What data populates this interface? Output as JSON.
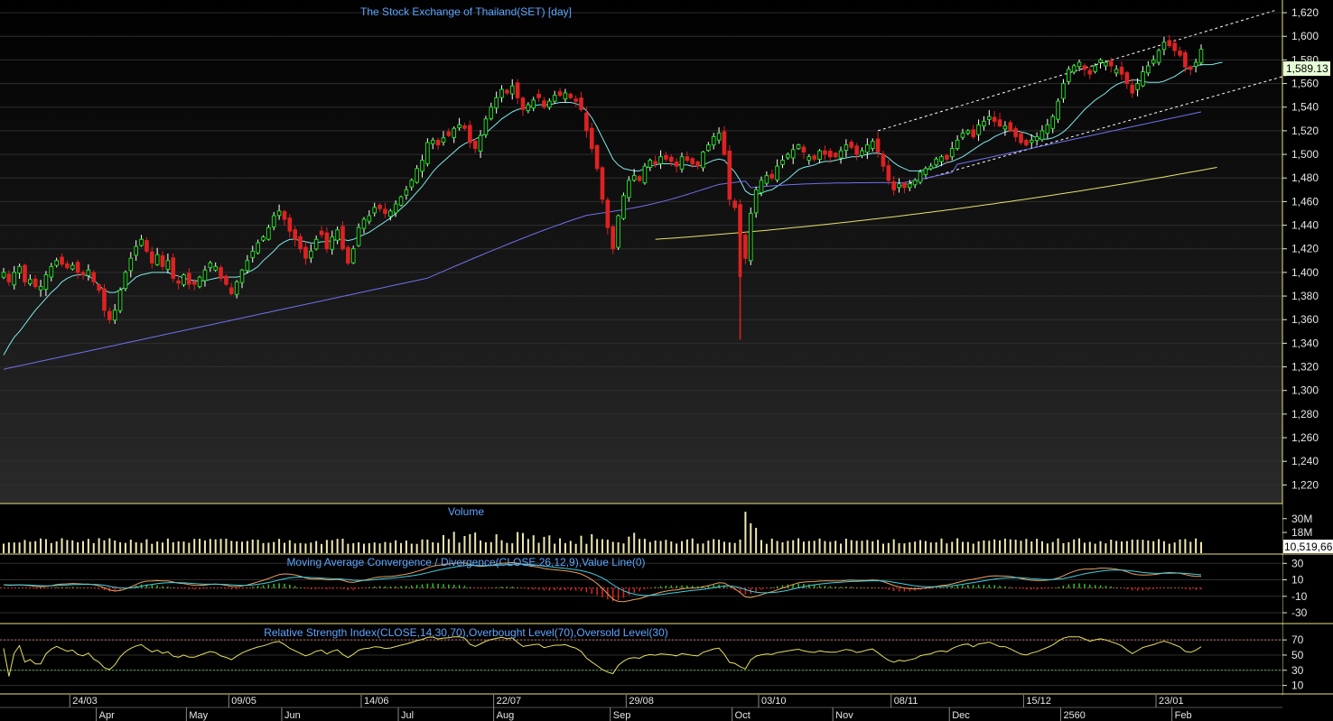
{
  "chart_data": {
    "type": "candlestick",
    "title": "The Stock Exchange of Thailand(SET) [day]",
    "last_price_label": "1,589.13",
    "last_volume_label": "10,519,66",
    "colors": {
      "background": "#000000",
      "panel_border": "#e8e07a",
      "grid": "#2e2e2e",
      "up_candle": "#22dd22",
      "down_candle": "#dd2222",
      "ma_short": "#7fe8e8",
      "ma_mid": "#7070ee",
      "ma_long": "#e8e070",
      "volume": "#efe9b0",
      "macd": "#e8a060",
      "signal": "#40d0e0",
      "rsi": "#e8e060",
      "rsi_overbought": "#cc6666",
      "rsi_oversold": "#55aa55",
      "title": "#5da5ff",
      "last_price_box": "#e6ffd8"
    },
    "price_axis": {
      "ylim": [
        1205,
        1630
      ],
      "ticks": [
        1220,
        1240,
        1260,
        1280,
        1300,
        1320,
        1340,
        1360,
        1380,
        1400,
        1420,
        1440,
        1460,
        1480,
        1500,
        1520,
        1540,
        1560,
        1580,
        1600,
        1620
      ],
      "tick_labels": [
        "1,220",
        "1,240",
        "1,260",
        "1,280",
        "1,300",
        "1,320",
        "1,340",
        "1,360",
        "1,380",
        "1,400",
        "1,420",
        "1,440",
        "1,460",
        "1,480",
        "1,500",
        "1,520",
        "1,540",
        "1,560",
        "1,580",
        "1,600",
        "1,620"
      ]
    },
    "x_axis": {
      "major_labels": [
        {
          "label": "24/03",
          "index": 13
        },
        {
          "label": "09/05",
          "index": 43
        },
        {
          "label": "14/06",
          "index": 68
        },
        {
          "label": "22/07",
          "index": 93
        },
        {
          "label": "29/08",
          "index": 118
        },
        {
          "label": "03/10",
          "index": 143
        },
        {
          "label": "08/11",
          "index": 168
        },
        {
          "label": "15/12",
          "index": 193
        },
        {
          "label": "23/01",
          "index": 218
        }
      ],
      "month_labels": [
        {
          "label": "Apr",
          "index": 18
        },
        {
          "label": "May",
          "index": 35
        },
        {
          "label": "Jun",
          "index": 53
        },
        {
          "label": "Jul",
          "index": 75
        },
        {
          "label": "Aug",
          "index": 93
        },
        {
          "label": "Sep",
          "index": 115
        },
        {
          "label": "Oct",
          "index": 138
        },
        {
          "label": "Nov",
          "index": 157
        },
        {
          "label": "Dec",
          "index": 179
        },
        {
          "label": "2560",
          "index": 200
        },
        {
          "label": "Feb",
          "index": 221
        }
      ]
    },
    "close": [
      1400,
      1392,
      1400,
      1405,
      1392,
      1394,
      1388,
      1388,
      1398,
      1405,
      1410,
      1407,
      1404,
      1406,
      1400,
      1398,
      1402,
      1392,
      1385,
      1368,
      1360,
      1368,
      1385,
      1400,
      1412,
      1422,
      1428,
      1418,
      1408,
      1415,
      1405,
      1410,
      1395,
      1391,
      1398,
      1390,
      1390,
      1396,
      1402,
      1408,
      1405,
      1395,
      1390,
      1382,
      1392,
      1402,
      1410,
      1418,
      1425,
      1430,
      1438,
      1448,
      1452,
      1445,
      1435,
      1428,
      1420,
      1412,
      1418,
      1428,
      1432,
      1420,
      1430,
      1436,
      1420,
      1408,
      1420,
      1438,
      1445,
      1448,
      1455,
      1454,
      1450,
      1452,
      1458,
      1464,
      1470,
      1478,
      1488,
      1495,
      1510,
      1512,
      1508,
      1514,
      1516,
      1522,
      1525,
      1522,
      1510,
      1505,
      1516,
      1530,
      1540,
      1548,
      1555,
      1552,
      1558,
      1548,
      1538,
      1542,
      1546,
      1548,
      1540,
      1545,
      1550,
      1550,
      1552,
      1548,
      1545,
      1538,
      1520,
      1505,
      1488,
      1462,
      1438,
      1420,
      1448,
      1465,
      1478,
      1482,
      1478,
      1490,
      1495,
      1492,
      1498,
      1496,
      1494,
      1490,
      1498,
      1495,
      1492,
      1490,
      1502,
      1508,
      1515,
      1518,
      1500,
      1462,
      1455,
      1432,
      1412,
      1450,
      1470,
      1478,
      1482,
      1480,
      1490,
      1495,
      1500,
      1504,
      1508,
      1502,
      1498,
      1496,
      1503,
      1500,
      1498,
      1498,
      1503,
      1508,
      1506,
      1500,
      1503,
      1508,
      1511,
      1502,
      1490,
      1478,
      1470,
      1475,
      1472,
      1475,
      1478,
      1485,
      1488,
      1490,
      1496,
      1498,
      1496,
      1505,
      1512,
      1518,
      1520,
      1515,
      1525,
      1528,
      1532,
      1528,
      1524,
      1524,
      1520,
      1515,
      1510,
      1508,
      1512,
      1515,
      1520,
      1525,
      1532,
      1545,
      1560,
      1572,
      1575,
      1578,
      1572,
      1568,
      1575,
      1580,
      1578,
      1575,
      1572,
      1568,
      1560,
      1552,
      1560,
      1570,
      1575,
      1580,
      1588,
      1595,
      1592,
      1588,
      1584,
      1574,
      1572,
      1578,
      1589
    ],
    "candles_note": "daily OHLC approximated from chart",
    "ma_short_sample": [
      1330,
      1338,
      1345,
      1350,
      1356,
      1362,
      1368,
      1373,
      1378,
      1383,
      1387,
      1392,
      1395,
      1397,
      1398,
      1398,
      1397,
      1394,
      1389,
      1385,
      1383,
      1383,
      1385,
      1388,
      1392,
      1396,
      1398,
      1399,
      1400,
      1400,
      1400,
      1400,
      1398,
      1397,
      1395,
      1394,
      1393,
      1393,
      1393,
      1394,
      1395,
      1396,
      1396,
      1396,
      1396,
      1397,
      1400,
      1402,
      1405,
      1410,
      1414,
      1418,
      1423,
      1426,
      1428,
      1428,
      1427,
      1426,
      1425,
      1425,
      1426,
      1426,
      1427,
      1428,
      1428,
      1427,
      1428,
      1430,
      1432,
      1434,
      1437,
      1440,
      1443,
      1446,
      1450,
      1454,
      1458,
      1463,
      1468,
      1473,
      1479,
      1485,
      1490,
      1494,
      1498,
      1502,
      1506,
      1509,
      1511,
      1513,
      1515,
      1518,
      1522,
      1526,
      1530,
      1533,
      1536,
      1538,
      1539,
      1540,
      1541,
      1542,
      1542,
      1542,
      1543,
      1544,
      1544,
      1544,
      1543,
      1541,
      1537,
      1531,
      1523,
      1514,
      1505,
      1496,
      1491,
      1488,
      1487,
      1486,
      1486,
      1488,
      1490,
      1491,
      1492,
      1492,
      1492,
      1491,
      1491,
      1491,
      1490,
      1490,
      1491,
      1493,
      1495,
      1496,
      1495,
      1490,
      1485,
      1478,
      1469,
      1466,
      1466,
      1467,
      1469,
      1470,
      1473,
      1476,
      1479,
      1483,
      1487,
      1489,
      1490,
      1491,
      1493,
      1494,
      1494,
      1495,
      1496,
      1497,
      1498,
      1498,
      1499,
      1500,
      1501,
      1501,
      1500,
      1497,
      1493,
      1490,
      1488,
      1486,
      1486,
      1486,
      1487,
      1488,
      1489,
      1491,
      1493,
      1494,
      1496,
      1498,
      1501,
      1504,
      1507,
      1510,
      1512,
      1515,
      1517,
      1519,
      1520,
      1520,
      1519,
      1518,
      1516,
      1514,
      1513,
      1513,
      1514,
      1516,
      1519,
      1523,
      1528,
      1533,
      1538,
      1542,
      1546,
      1549,
      1552,
      1556,
      1559,
      1561,
      1562,
      1563,
      1563,
      1562,
      1561,
      1561,
      1561,
      1562,
      1564,
      1566,
      1569,
      1572,
      1574,
      1575,
      1576,
      1576,
      1576,
      1577,
      1578
    ],
    "ma_mid_start": [
      0,
      1318
    ],
    "ma_mid_end": [
      229,
      1536
    ],
    "ma_long_start": [
      123,
      1428
    ],
    "ma_long_end": [
      229,
      1489
    ],
    "channel_upper": [
      [
        165,
        1520
      ],
      [
        240,
        1622
      ]
    ],
    "channel_lower": [
      [
        169,
        1473
      ],
      [
        243,
        1568
      ]
    ],
    "volume_axis": {
      "ticks": [
        "30M",
        "18M"
      ],
      "values": [
        30,
        18
      ],
      "ylim": [
        0,
        40
      ]
    },
    "volume_panel_title": "Volume",
    "macd_panel_title": "Moving Average Convergence / Divergence(CLOSE,26,12,9),Value Line(0)",
    "macd_axis": {
      "ticks": [
        30,
        10,
        -10,
        -30
      ],
      "ylim": [
        -42,
        38
      ]
    },
    "rsi_panel_title": "Relative Strength Index(CLOSE,14,30,70),Overbought Level(70),Oversold Level(30)",
    "rsi_axis": {
      "ticks": [
        70,
        50,
        30,
        10
      ],
      "ylim": [
        0,
        88
      ],
      "overbought": 70,
      "oversold": 30
    }
  }
}
